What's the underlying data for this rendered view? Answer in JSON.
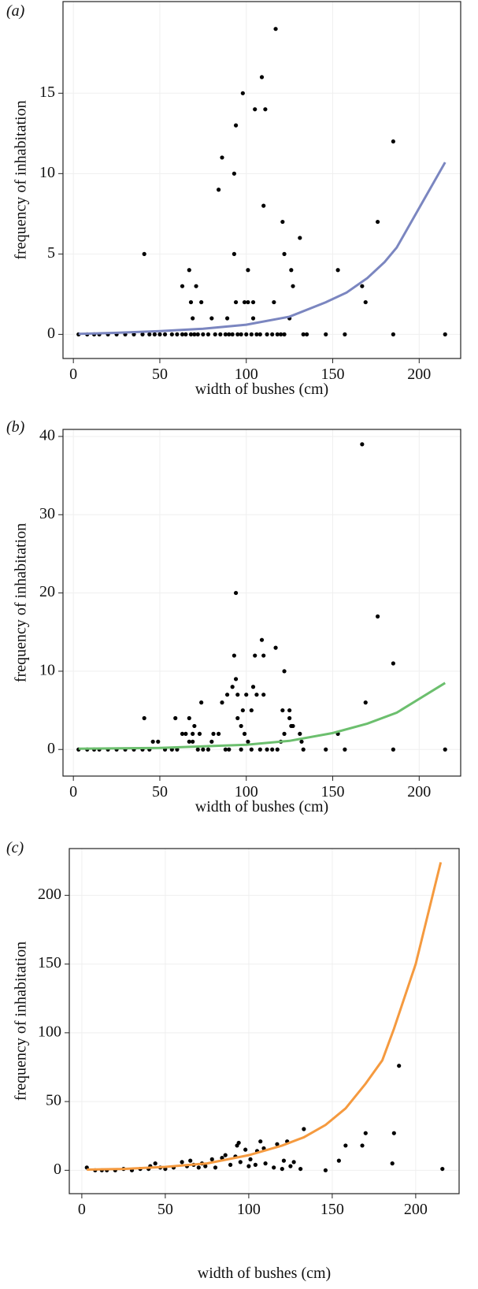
{
  "chart_data": [
    {
      "type": "scatter",
      "title": "(a)",
      "xlabel": "width of bushes (cm)",
      "ylabel": "frequency of inhabitation",
      "xlim": [
        -6,
        224
      ],
      "ylim": [
        -1.5,
        20.7
      ],
      "xticks": [
        0,
        50,
        100,
        150,
        200
      ],
      "yticks": [
        0,
        5,
        10,
        15
      ],
      "grid": true,
      "series": [
        {
          "type": "scatter",
          "color": "#000000",
          "x": [
            41,
            63,
            67,
            68,
            69,
            71,
            74,
            80,
            84,
            86,
            89,
            93,
            93,
            94,
            94,
            98,
            99,
            101,
            101,
            104,
            104,
            105,
            109,
            110,
            111,
            116,
            117,
            121,
            122,
            125,
            126,
            127,
            131,
            153,
            167,
            169,
            176,
            185,
            3,
            8,
            12,
            15,
            20,
            25,
            30,
            35,
            40,
            44,
            47,
            50,
            53,
            57,
            60,
            63,
            65,
            68,
            70,
            72,
            75,
            78,
            82,
            85,
            88,
            90,
            92,
            95,
            97,
            100,
            103,
            106,
            108,
            112,
            115,
            118,
            120,
            122,
            133,
            135,
            146,
            157,
            185,
            215
          ],
          "values": [
            5,
            3,
            4,
            2,
            1,
            3,
            2,
            1,
            9,
            11,
            1,
            10,
            5,
            13,
            2,
            15,
            2,
            4,
            2,
            2,
            1,
            14,
            16,
            8,
            14,
            2,
            19,
            7,
            5,
            1,
            4,
            3,
            6,
            4,
            3,
            2,
            7,
            12,
            0,
            0,
            0,
            0,
            0,
            0,
            0,
            0,
            0,
            0,
            0,
            0,
            0,
            0,
            0,
            0,
            0,
            0,
            0,
            0,
            0,
            0,
            0,
            0,
            0,
            0,
            0,
            0,
            0,
            0,
            0,
            0,
            0,
            0,
            0,
            0,
            0,
            0,
            0,
            0,
            0,
            0,
            0,
            0
          ]
        },
        {
          "type": "line",
          "color": "#7b86c0",
          "x": [
            3,
            25,
            50,
            75,
            100,
            125,
            146,
            158,
            170,
            180,
            187,
            215
          ],
          "values": [
            0.03,
            0.1,
            0.2,
            0.35,
            0.6,
            1.1,
            2.0,
            2.6,
            3.5,
            4.5,
            5.4,
            10.7
          ]
        }
      ]
    },
    {
      "type": "scatter",
      "title": "(b)",
      "xlabel": "width of bushes (cm)",
      "ylabel": "frequency of inhabitation",
      "xlim": [
        -6,
        224
      ],
      "ylim": [
        -3.4,
        40.9
      ],
      "xticks": [
        0,
        50,
        100,
        150,
        200
      ],
      "yticks": [
        0,
        10,
        20,
        30,
        40
      ],
      "grid": true,
      "series": [
        {
          "type": "scatter",
          "color": "#000000",
          "x": [
            41,
            46,
            49,
            59,
            63,
            65,
            67,
            67,
            69,
            69,
            70,
            73,
            74,
            80,
            81,
            84,
            86,
            89,
            92,
            93,
            94,
            94,
            95,
            95,
            97,
            98,
            99,
            100,
            101,
            103,
            104,
            105,
            106,
            109,
            110,
            110,
            117,
            120,
            121,
            122,
            122,
            125,
            125,
            126,
            127,
            131,
            132,
            153,
            167,
            169,
            176,
            185,
            3,
            8,
            12,
            15,
            20,
            25,
            30,
            35,
            40,
            44,
            53,
            57,
            60,
            72,
            75,
            78,
            88,
            90,
            97,
            103,
            108,
            112,
            115,
            118,
            133,
            146,
            157,
            185,
            215
          ],
          "values": [
            4,
            1,
            1,
            4,
            2,
            2,
            4,
            1,
            2,
            1,
            3,
            2,
            6,
            1,
            2,
            2,
            6,
            7,
            8,
            12,
            20,
            9,
            4,
            7,
            3,
            5,
            2,
            7,
            1,
            5,
            8,
            12,
            7,
            14,
            12,
            7,
            13,
            1,
            5,
            10,
            2,
            4,
            5,
            3,
            3,
            2,
            1,
            2,
            39,
            6,
            17,
            11,
            0,
            0,
            0,
            0,
            0,
            0,
            0,
            0,
            0,
            0,
            0,
            0,
            0,
            0,
            0,
            0,
            0,
            0,
            0,
            0,
            0,
            0,
            0,
            0,
            0,
            0,
            0,
            0,
            0
          ]
        },
        {
          "type": "line",
          "color": "#6cbf6e",
          "x": [
            3,
            50,
            100,
            125,
            150,
            170,
            187,
            215
          ],
          "values": [
            0.1,
            0.2,
            0.6,
            1.1,
            2.1,
            3.3,
            4.7,
            8.5
          ]
        }
      ]
    },
    {
      "type": "scatter",
      "title": "(c)",
      "xlabel": "width of bushes (cm)",
      "ylabel": "frequency of inhabitation",
      "xlim": [
        -7.5,
        226
      ],
      "ylim": [
        -17,
        234
      ],
      "xticks": [
        0,
        50,
        100,
        150,
        200
      ],
      "yticks": [
        0,
        50,
        100,
        150,
        200
      ],
      "grid": true,
      "series": [
        {
          "type": "scatter",
          "color": "#000000",
          "x": [
            3,
            8,
            12,
            15,
            20,
            25,
            30,
            35,
            40,
            41,
            44,
            47,
            50,
            55,
            60,
            63,
            65,
            67,
            70,
            72,
            74,
            78,
            80,
            84,
            86,
            89,
            92,
            93,
            94,
            95,
            98,
            100,
            101,
            104,
            105,
            107,
            109,
            110,
            115,
            117,
            120,
            121,
            123,
            125,
            127,
            131,
            133,
            146,
            154,
            158,
            168,
            170,
            186,
            187,
            190,
            216
          ],
          "values": [
            2,
            0,
            0,
            0,
            0,
            1,
            0,
            1,
            1,
            3,
            5,
            2,
            1,
            2,
            6,
            3,
            7,
            4,
            2,
            5,
            3,
            8,
            2,
            9,
            11,
            4,
            10,
            18,
            20,
            6,
            15,
            3,
            8,
            4,
            14,
            21,
            16,
            5,
            2,
            19,
            1,
            7,
            21,
            3,
            6,
            1,
            30,
            0,
            7,
            18,
            18,
            27,
            5,
            27,
            76,
            1
          ]
        },
        {
          "type": "line",
          "color": "#f59a3f",
          "x": [
            3,
            25,
            50,
            75,
            100,
            120,
            133,
            146,
            158,
            170,
            180,
            187,
            200,
            215
          ],
          "values": [
            0.5,
            1,
            2.5,
            5,
            11,
            18,
            24,
            33,
            45,
            63,
            80,
            103,
            150,
            224
          ]
        }
      ]
    }
  ]
}
